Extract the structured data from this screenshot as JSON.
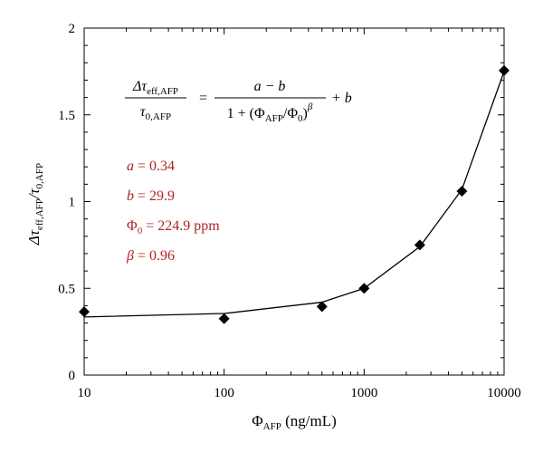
{
  "chart_data": {
    "type": "scatter",
    "title": "",
    "xscale": "log",
    "xlim": [
      10,
      10000
    ],
    "ylim": [
      0,
      2
    ],
    "xticks": [
      10,
      100,
      1000,
      10000
    ],
    "xtick_labels": [
      "10",
      "100",
      "1000",
      "10000"
    ],
    "yticks": [
      0,
      0.5,
      1,
      1.5,
      2
    ],
    "ytick_labels": [
      "0",
      "0.5",
      "1",
      "1.5",
      "2"
    ],
    "xlabel": {
      "main": "Φ",
      "sub": "AFP",
      "rest": " (ng/mL)"
    },
    "ylabel": {
      "delta": "Δτ",
      "num_sub": "eff,AFP",
      "slash": "/τ",
      "den_sub": "0,AFP"
    },
    "grid": false,
    "series": [
      {
        "marker": "diamond",
        "x": [
          10,
          100,
          500,
          1000,
          2500,
          5000,
          10000
        ],
        "y": [
          0.365,
          0.325,
          0.395,
          0.5,
          0.75,
          1.06,
          1.755
        ]
      }
    ],
    "fit_line": {
      "x": [
        10,
        100,
        500,
        1000,
        2500,
        5000,
        10000
      ],
      "y": [
        0.335,
        0.355,
        0.42,
        0.5,
        0.74,
        1.07,
        1.75
      ]
    },
    "equation": {
      "lhs_num": "Δτ",
      "lhs_num_sub": "eff,AFP",
      "lhs_den": "τ",
      "lhs_den_sub": "0,AFP",
      "equals": "=",
      "rhs_num": "a − b",
      "rhs_den_a": "1 + (Φ",
      "rhs_den_sub1": "AFP",
      "rhs_den_b": "/Φ",
      "rhs_den_sub2": "0",
      "rhs_den_c": ")",
      "rhs_den_exp": "β",
      "plus_b": "+ b"
    },
    "parameters": [
      {
        "symbol": "a",
        "sub": "",
        "value": " = 0.34"
      },
      {
        "symbol": "b",
        "sub": "",
        "value": " = 29.9"
      },
      {
        "symbol": "Φ",
        "sub": "0",
        "value": " = 224.9 ppm"
      },
      {
        "symbol": "β",
        "sub": "",
        "value": " = 0.96"
      }
    ],
    "colors": {
      "axis": "#000000",
      "markers": "#000000",
      "parameters": "#b22222"
    }
  }
}
